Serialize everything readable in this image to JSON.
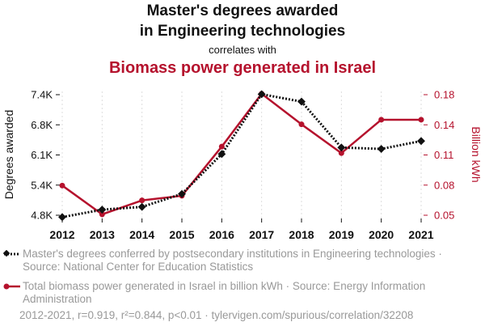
{
  "title": {
    "line1": "Master's degrees awarded",
    "line2": "in Engineering technologies",
    "connector": "correlates with",
    "second": "Biomass power generated in Israel"
  },
  "colors": {
    "series1": "#111111",
    "series2": "#b5122d",
    "muted": "#999999"
  },
  "chart_data": {
    "type": "line",
    "x": [
      2012,
      2013,
      2014,
      2015,
      2016,
      2017,
      2018,
      2019,
      2020,
      2021
    ],
    "series": [
      {
        "name": "Master's degrees conferred by postsecondary institutions in Engineering technologies",
        "axis": "left",
        "style": "dotted",
        "marker": "diamond",
        "values": [
          4760,
          4920,
          4980,
          5260,
          6120,
          7410,
          7250,
          6260,
          6230,
          6400
        ]
      },
      {
        "name": "Total biomass power generated in Israel in billion kWh",
        "axis": "right",
        "style": "solid",
        "marker": "circle",
        "values": [
          0.082,
          0.051,
          0.066,
          0.071,
          0.124,
          0.181,
          0.148,
          0.117,
          0.153,
          0.153
        ]
      }
    ],
    "ylabel_left": "Degrees awarded",
    "ylabel_right": "Billion kWh",
    "ylim_left": [
      4800,
      7400
    ],
    "yticks_left": [
      "4.8K",
      "5.4K",
      "6.1K",
      "6.8K",
      "7.4K"
    ],
    "ylim_right": [
      0.05,
      0.18
    ],
    "yticks_right": [
      "0.05",
      "0.08",
      "0.11",
      "0.14",
      "0.18"
    ],
    "xticks": [
      "2012",
      "2013",
      "2014",
      "2015",
      "2016",
      "2017",
      "2018",
      "2019",
      "2020",
      "2021"
    ],
    "grid": "vertical"
  },
  "legend": {
    "series1_text": "Master's degrees conferred by postsecondary institutions in Engineering technologies · Source: National Center for Education Statistics",
    "series2_text": "Total biomass power generated in Israel in billion kWh · Source: Energy Information Administration"
  },
  "footer": "2012-2021, r=0.919, r²=0.844, p<0.01 · tylervigen.com/spurious/correlation/32208"
}
